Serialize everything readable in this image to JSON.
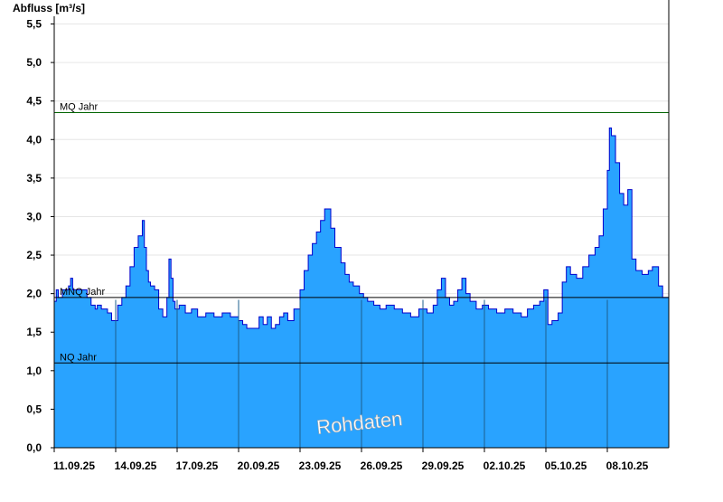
{
  "chart_data": {
    "type": "area",
    "ylabel": "Abfluss [m³/s]",
    "ylim": [
      0,
      5.6
    ],
    "yticks": [
      0,
      0.5,
      1.0,
      1.5,
      2.0,
      2.5,
      3.0,
      3.5,
      4.0,
      4.5,
      5.0,
      5.5
    ],
    "ytick_labels": [
      "0,0",
      "0,5",
      "1,0",
      "1,5",
      "2,0",
      "2,5",
      "3,0",
      "3,5",
      "4,0",
      "4,5",
      "5,0",
      "5,5"
    ],
    "xlim": [
      0,
      15
    ],
    "xtick_labels": [
      "11.09.25",
      "14.09.25",
      "17.09.25",
      "20.09.25",
      "23.09.25",
      "26.09.25",
      "29.09.25",
      "02.10.25",
      "05.10.25",
      "08.10.25"
    ],
    "xticks": [
      0,
      1.5,
      3,
      4.5,
      6,
      7.5,
      9,
      10.5,
      12,
      13.5
    ],
    "grid": true,
    "fill_color": "#29A3FF",
    "line_color": "#0000CC",
    "reference_lines": [
      {
        "label": "MQ Jahr",
        "value": 4.35,
        "color": "#006400"
      },
      {
        "label": "MNQ Jahr",
        "value": 1.95,
        "color": "#000000"
      },
      {
        "label": "NQ Jahr",
        "value": 1.1,
        "color": "#000000"
      }
    ],
    "watermark": "Rohdaten",
    "series": [
      {
        "x": [
          0.0,
          0.05,
          0.1,
          0.2,
          0.35,
          0.4,
          0.45,
          0.6,
          0.8,
          0.9,
          1.0,
          1.05,
          1.15,
          1.3,
          1.4,
          1.55,
          1.65,
          1.75,
          1.85,
          1.95,
          2.05,
          2.15,
          2.2,
          2.25,
          2.3,
          2.35,
          2.45,
          2.55,
          2.65,
          2.75,
          2.8,
          2.85,
          2.9,
          2.95,
          3.05,
          3.2,
          3.35,
          3.5,
          3.7,
          3.9,
          4.1,
          4.3,
          4.5,
          4.6,
          4.7,
          4.85,
          5.0,
          5.1,
          5.2,
          5.3,
          5.4,
          5.5,
          5.6,
          5.7,
          5.85,
          6.0,
          6.1,
          6.2,
          6.3,
          6.4,
          6.5,
          6.6,
          6.75,
          6.85,
          7.0,
          7.1,
          7.2,
          7.3,
          7.45,
          7.55,
          7.65,
          7.8,
          7.95,
          8.1,
          8.3,
          8.5,
          8.7,
          8.9,
          9.1,
          9.25,
          9.35,
          9.45,
          9.55,
          9.65,
          9.75,
          9.85,
          9.95,
          10.05,
          10.15,
          10.3,
          10.45,
          10.6,
          10.8,
          11.0,
          11.2,
          11.4,
          11.55,
          11.7,
          11.85,
          11.95,
          12.05,
          12.15,
          12.3,
          12.4,
          12.5,
          12.6,
          12.75,
          12.9,
          13.05,
          13.2,
          13.3,
          13.4,
          13.5,
          13.55,
          13.6,
          13.7,
          13.8,
          13.9,
          14.0,
          14.1,
          14.2,
          14.35,
          14.5,
          14.6,
          14.75,
          14.85,
          15.0
        ],
        "values": [
          1.9,
          2.05,
          1.95,
          2.05,
          2.1,
          2.2,
          2.05,
          2.05,
          1.95,
          1.85,
          1.8,
          1.85,
          1.8,
          1.75,
          1.65,
          1.85,
          1.95,
          2.1,
          2.35,
          2.6,
          2.75,
          2.95,
          2.6,
          2.3,
          2.15,
          2.1,
          2.05,
          1.8,
          1.7,
          1.95,
          2.45,
          2.2,
          1.9,
          1.8,
          1.85,
          1.75,
          1.8,
          1.7,
          1.75,
          1.7,
          1.75,
          1.7,
          1.65,
          1.6,
          1.55,
          1.55,
          1.7,
          1.6,
          1.7,
          1.55,
          1.6,
          1.7,
          1.75,
          1.65,
          1.8,
          2.05,
          2.3,
          2.5,
          2.65,
          2.8,
          2.95,
          3.1,
          2.85,
          2.6,
          2.4,
          2.25,
          2.15,
          2.1,
          2.0,
          1.95,
          1.9,
          1.85,
          1.8,
          1.85,
          1.8,
          1.75,
          1.7,
          1.8,
          1.75,
          1.85,
          2.05,
          2.2,
          1.95,
          1.85,
          1.9,
          2.05,
          2.2,
          2.0,
          1.9,
          1.8,
          1.85,
          1.8,
          1.75,
          1.8,
          1.75,
          1.7,
          1.8,
          1.85,
          1.9,
          2.05,
          1.6,
          1.65,
          1.75,
          2.15,
          2.35,
          2.25,
          2.2,
          2.35,
          2.5,
          2.6,
          2.75,
          3.1,
          3.6,
          4.15,
          4.05,
          3.7,
          3.3,
          3.15,
          3.35,
          2.45,
          2.3,
          2.25,
          2.3,
          2.35,
          2.1,
          1.95,
          2.05
        ]
      }
    ]
  }
}
